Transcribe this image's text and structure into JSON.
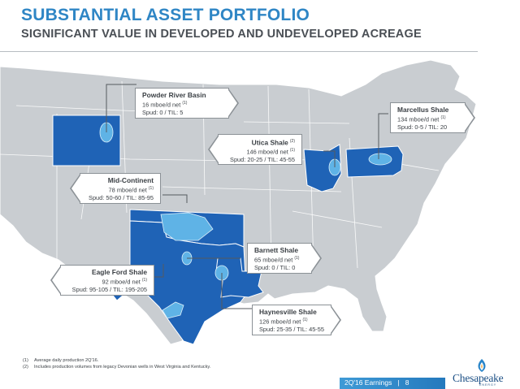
{
  "header": {
    "title": "SUBSTANTIAL ASSET PORTFOLIO",
    "subtitle": "SIGNIFICANT VALUE IN DEVELOPED AND UNDEVELOPED ACREAGE"
  },
  "callouts": {
    "powder_river": {
      "name": "Powder River Basin",
      "sup": "",
      "line1": "16 mboe/d net",
      "line1_sup": "(1)",
      "line2": "Spud: 0 / TIL: 5"
    },
    "marcellus": {
      "name": "Marcellus Shale",
      "sup": "",
      "line1": "134 mboe/d net",
      "line1_sup": "(1)",
      "line2": "Spud: 0-5 / TIL: 20"
    },
    "utica": {
      "name": "Utica Shale",
      "sup": "(2)",
      "line1": "146 mboe/d net",
      "line1_sup": "(1)",
      "line2": "Spud: 20-25 / TIL: 45-55"
    },
    "mid_continent": {
      "name": "Mid-Continent",
      "sup": "",
      "line1": "78 mboe/d net",
      "line1_sup": "(1)",
      "line2": "Spud: 50-60 / TIL: 85-95"
    },
    "barnett": {
      "name": "Barnett Shale",
      "sup": "",
      "line1": "65 mboe/d net",
      "line1_sup": "(1)",
      "line2": "Spud: 0 / TIL: 0"
    },
    "eagle_ford": {
      "name": "Eagle Ford Shale",
      "sup": "",
      "line1": "92 mboe/d net",
      "line1_sup": "(1)",
      "line2": "Spud: 95-105 / TIL: 195-205"
    },
    "haynesville": {
      "name": "Haynesville Shale",
      "sup": "",
      "line1": "126 mboe/d net",
      "line1_sup": "(1)",
      "line2": "Spud: 25-35 / TIL: 45-55"
    }
  },
  "footnotes": [
    {
      "num": "(1)",
      "text": "Average daily production 2Q'16."
    },
    {
      "num": "(2)",
      "text": "Includes production volumes from legacy Devonian wells in West Virginia and Kentucky."
    }
  ],
  "footer": {
    "label": "2Q'16 Earnings",
    "separator": "|",
    "page": "8"
  },
  "logo": {
    "text": "Chesapeake",
    "subtext": "ENERGY"
  },
  "colors": {
    "title_blue": "#2f86c5",
    "land_gray": "#c9cdd1",
    "state_blue": "#1f63b6",
    "play_light_blue": "#5fb3e6"
  }
}
